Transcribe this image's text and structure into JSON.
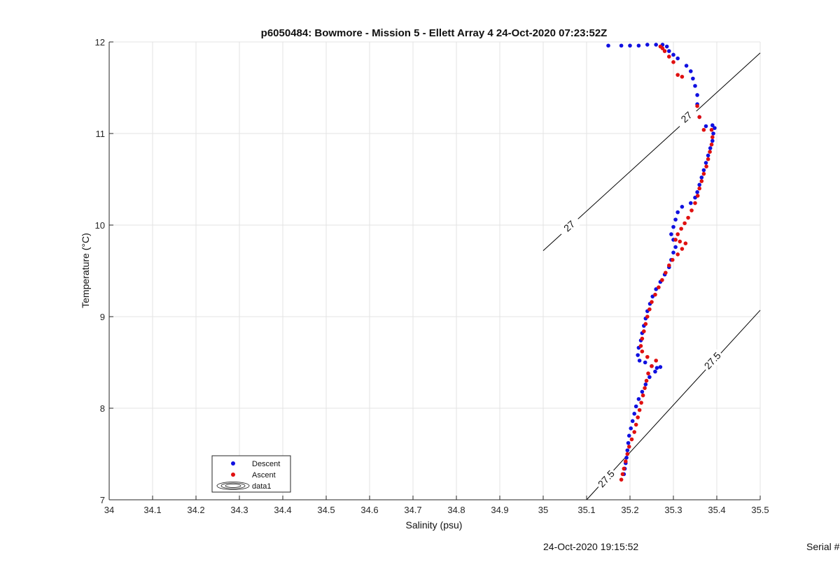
{
  "chart_data": {
    "type": "scatter",
    "title": "p6050484: Bowmore - Mission 5 - Ellett Array 4 24-Oct-2020 07:23:52Z",
    "xlabel": "Salinity (psu)",
    "ylabel": "Temperature (°C)",
    "xlim": [
      34,
      35.5
    ],
    "ylim": [
      7,
      12
    ],
    "xticks": [
      34,
      34.1,
      34.2,
      34.3,
      34.4,
      34.5,
      34.6,
      34.7,
      34.8,
      34.9,
      35,
      35.1,
      35.2,
      35.3,
      35.4,
      35.5
    ],
    "xtick_labels": [
      "34",
      "34.1",
      "34.2",
      "34.3",
      "34.4",
      "34.5",
      "34.6",
      "34.7",
      "34.8",
      "34.9",
      "35",
      "35.1",
      "35.2",
      "35.3",
      "35.4",
      "35.5"
    ],
    "yticks": [
      7,
      8,
      9,
      10,
      11,
      12
    ],
    "ytick_labels": [
      "7",
      "8",
      "9",
      "10",
      "11",
      "12"
    ],
    "grid": true,
    "legend": {
      "placement": "bottom-left",
      "entries": [
        "Descent",
        "Ascent",
        "data1"
      ]
    },
    "contours": [
      {
        "label": "27",
        "points": [
          [
            35.0,
            9.72
          ],
          [
            35.5,
            11.88
          ]
        ],
        "label_positions": [
          [
            35.06,
            9.99
          ],
          [
            35.33,
            11.18
          ]
        ]
      },
      {
        "label": "27.5",
        "points": [
          [
            35.1,
            7.0
          ],
          [
            35.5,
            9.07
          ]
        ],
        "label_positions": [
          [
            35.145,
            7.23
          ],
          [
            35.39,
            8.52
          ]
        ]
      }
    ],
    "series": [
      {
        "name": "Descent",
        "color": "#1010e0",
        "points": [
          [
            35.15,
            11.96
          ],
          [
            35.18,
            11.96
          ],
          [
            35.2,
            11.96
          ],
          [
            35.22,
            11.96
          ],
          [
            35.24,
            11.97
          ],
          [
            35.26,
            11.97
          ],
          [
            35.275,
            11.97
          ],
          [
            35.285,
            11.95
          ],
          [
            35.29,
            11.9
          ],
          [
            35.3,
            11.86
          ],
          [
            35.31,
            11.82
          ],
          [
            35.33,
            11.74
          ],
          [
            35.34,
            11.68
          ],
          [
            35.345,
            11.6
          ],
          [
            35.35,
            11.52
          ],
          [
            35.355,
            11.42
          ],
          [
            35.355,
            11.32
          ],
          [
            35.36,
            11.18
          ],
          [
            35.375,
            11.08
          ],
          [
            35.39,
            11.09
          ],
          [
            35.395,
            11.06
          ],
          [
            35.392,
            11.0
          ],
          [
            35.39,
            10.92
          ],
          [
            35.385,
            10.84
          ],
          [
            35.38,
            10.76
          ],
          [
            35.375,
            10.68
          ],
          [
            35.37,
            10.6
          ],
          [
            35.365,
            10.52
          ],
          [
            35.36,
            10.44
          ],
          [
            35.355,
            10.36
          ],
          [
            35.35,
            10.3
          ],
          [
            35.34,
            10.24
          ],
          [
            35.32,
            10.2
          ],
          [
            35.31,
            10.14
          ],
          [
            35.305,
            10.06
          ],
          [
            35.3,
            9.98
          ],
          [
            35.295,
            9.9
          ],
          [
            35.3,
            9.84
          ],
          [
            35.305,
            9.76
          ],
          [
            35.3,
            9.7
          ],
          [
            35.295,
            9.62
          ],
          [
            35.29,
            9.54
          ],
          [
            35.28,
            9.46
          ],
          [
            35.27,
            9.38
          ],
          [
            35.26,
            9.3
          ],
          [
            35.252,
            9.22
          ],
          [
            35.246,
            9.14
          ],
          [
            35.24,
            9.06
          ],
          [
            35.236,
            8.98
          ],
          [
            35.232,
            8.9
          ],
          [
            35.228,
            8.82
          ],
          [
            35.225,
            8.74
          ],
          [
            35.22,
            8.66
          ],
          [
            35.218,
            8.58
          ],
          [
            35.222,
            8.52
          ],
          [
            35.235,
            8.5
          ],
          [
            35.25,
            8.46
          ],
          [
            35.262,
            8.44
          ],
          [
            35.27,
            8.45
          ],
          [
            35.258,
            8.4
          ],
          [
            35.245,
            8.34
          ],
          [
            35.236,
            8.26
          ],
          [
            35.228,
            8.18
          ],
          [
            35.22,
            8.1
          ],
          [
            35.214,
            8.02
          ],
          [
            35.21,
            7.94
          ],
          [
            35.206,
            7.86
          ],
          [
            35.202,
            7.78
          ],
          [
            35.198,
            7.7
          ],
          [
            35.196,
            7.62
          ],
          [
            35.194,
            7.54
          ],
          [
            35.192,
            7.46
          ],
          [
            35.19,
            7.4
          ],
          [
            35.188,
            7.34
          ],
          [
            35.186,
            7.28
          ]
        ]
      },
      {
        "name": "Ascent",
        "color": "#e01010",
        "points": [
          [
            35.18,
            7.22
          ],
          [
            35.183,
            7.28
          ],
          [
            35.186,
            7.34
          ],
          [
            35.19,
            7.42
          ],
          [
            35.194,
            7.5
          ],
          [
            35.198,
            7.58
          ],
          [
            35.204,
            7.66
          ],
          [
            35.21,
            7.74
          ],
          [
            35.214,
            7.82
          ],
          [
            35.218,
            7.9
          ],
          [
            35.222,
            7.98
          ],
          [
            35.226,
            8.06
          ],
          [
            35.23,
            8.14
          ],
          [
            35.234,
            8.22
          ],
          [
            35.238,
            8.3
          ],
          [
            35.242,
            8.38
          ],
          [
            35.25,
            8.46
          ],
          [
            35.26,
            8.52
          ],
          [
            35.24,
            8.56
          ],
          [
            35.228,
            8.62
          ],
          [
            35.225,
            8.68
          ],
          [
            35.228,
            8.76
          ],
          [
            35.232,
            8.84
          ],
          [
            35.236,
            8.92
          ],
          [
            35.24,
            9.0
          ],
          [
            35.245,
            9.08
          ],
          [
            35.25,
            9.16
          ],
          [
            35.258,
            9.24
          ],
          [
            35.266,
            9.32
          ],
          [
            35.274,
            9.4
          ],
          [
            35.282,
            9.48
          ],
          [
            35.29,
            9.56
          ],
          [
            35.298,
            9.62
          ],
          [
            35.31,
            9.68
          ],
          [
            35.32,
            9.74
          ],
          [
            35.328,
            9.8
          ],
          [
            35.315,
            9.82
          ],
          [
            35.305,
            9.84
          ],
          [
            35.31,
            9.9
          ],
          [
            35.318,
            9.96
          ],
          [
            35.326,
            10.02
          ],
          [
            35.334,
            10.08
          ],
          [
            35.342,
            10.16
          ],
          [
            35.35,
            10.24
          ],
          [
            35.356,
            10.32
          ],
          [
            35.36,
            10.4
          ],
          [
            35.365,
            10.48
          ],
          [
            35.37,
            10.56
          ],
          [
            35.376,
            10.64
          ],
          [
            35.38,
            10.72
          ],
          [
            35.384,
            10.8
          ],
          [
            35.388,
            10.88
          ],
          [
            35.39,
            10.96
          ],
          [
            35.388,
            11.04
          ],
          [
            35.37,
            11.04
          ],
          [
            35.36,
            11.18
          ],
          [
            35.355,
            11.3
          ],
          [
            35.32,
            11.62
          ],
          [
            35.31,
            11.64
          ],
          [
            35.3,
            11.78
          ],
          [
            35.29,
            11.84
          ],
          [
            35.28,
            11.9
          ],
          [
            35.275,
            11.93
          ],
          [
            35.27,
            11.95
          ]
        ]
      }
    ]
  },
  "footer": {
    "timestamp": "24-Oct-2020 19:15:52",
    "serial": "Serial #"
  }
}
